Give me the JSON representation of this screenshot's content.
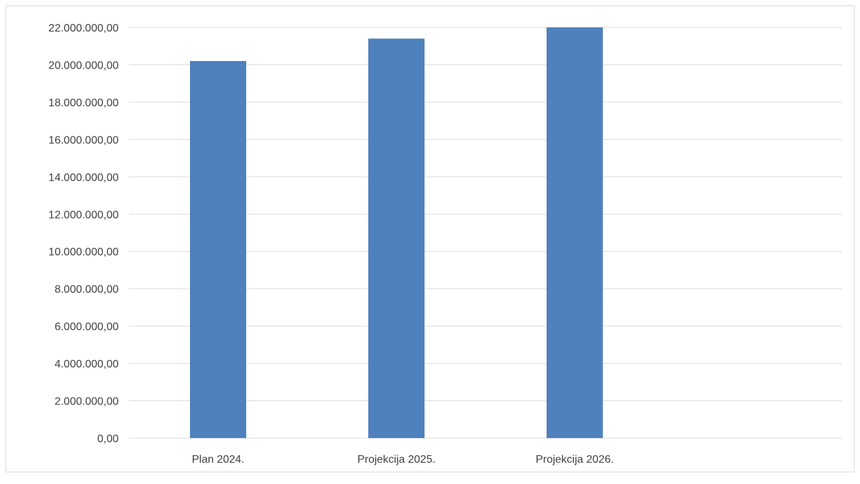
{
  "chart_data": {
    "type": "bar",
    "categories": [
      "Plan 2024.",
      "Projekcija 2025.",
      "Projekcija 2026."
    ],
    "series": [
      {
        "values": [
          20200000,
          21400000,
          22000000
        ],
        "color": "#4f81bd"
      }
    ],
    "yticks": [
      "0,00",
      "2.000.000,00",
      "4.000.000,00",
      "6.000.000,00",
      "8.000.000,00",
      "10.000.000,00",
      "12.000.000,00",
      "14.000.000,00",
      "16.000.000,00",
      "18.000.000,00",
      "20.000.000,00",
      "22.000.000,00"
    ],
    "ylim": [
      0,
      22000000
    ],
    "ytick_step": 2000000,
    "grid": true,
    "legend": "none"
  }
}
